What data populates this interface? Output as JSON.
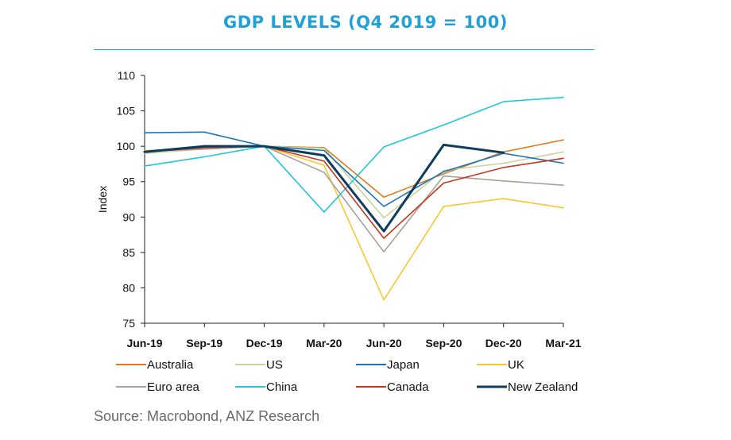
{
  "title": "GDP LEVELS (Q4 2019 = 100)",
  "source": "Source: Macrobond, ANZ Research",
  "chart_data": {
    "type": "line",
    "title": "GDP LEVELS (Q4 2019 = 100)",
    "ylabel": "Index",
    "xlabel": "",
    "ylim": [
      75,
      110
    ],
    "yticks": [
      75,
      80,
      85,
      90,
      95,
      100,
      105,
      110
    ],
    "categories": [
      "Jun-19",
      "Sep-19",
      "Dec-19",
      "Mar-20",
      "Jun-20",
      "Sep-20",
      "Dec-20",
      "Mar-21"
    ],
    "grid": false,
    "legend_position": "bottom",
    "series": [
      {
        "name": "Australia",
        "color": "#e07b1a",
        "values": [
          99.3,
          99.6,
          100.0,
          99.8,
          92.8,
          96.1,
          99.2,
          100.9
        ]
      },
      {
        "name": "US",
        "color": "#c9d39a",
        "values": [
          99.0,
          99.6,
          100.0,
          99.7,
          89.9,
          96.6,
          97.6,
          99.2
        ]
      },
      {
        "name": "Japan",
        "color": "#1c75bc",
        "values": [
          101.9,
          102.0,
          100.0,
          99.4,
          91.5,
          96.4,
          99.0,
          97.6
        ]
      },
      {
        "name": "UK",
        "color": "#fac82c",
        "values": [
          99.4,
          99.7,
          100.0,
          97.3,
          78.3,
          91.5,
          92.6,
          91.3
        ]
      },
      {
        "name": "Euro area",
        "color": "#a9a09a",
        "values": [
          99.3,
          99.6,
          100.0,
          96.3,
          85.1,
          95.8,
          95.1,
          94.5
        ]
      },
      {
        "name": "China",
        "color": "#1ec8d8",
        "values": [
          97.2,
          98.5,
          100.0,
          90.7,
          99.9,
          103.0,
          106.3,
          106.9
        ]
      },
      {
        "name": "Canada",
        "color": "#c8361f",
        "values": [
          99.2,
          99.8,
          100.0,
          97.9,
          87.0,
          94.8,
          97.0,
          98.3
        ]
      },
      {
        "name": "New Zealand",
        "color": "#0e3c5c",
        "values": [
          99.2,
          100.0,
          100.0,
          98.7,
          88.0,
          100.2,
          99.1,
          null
        ]
      }
    ]
  }
}
